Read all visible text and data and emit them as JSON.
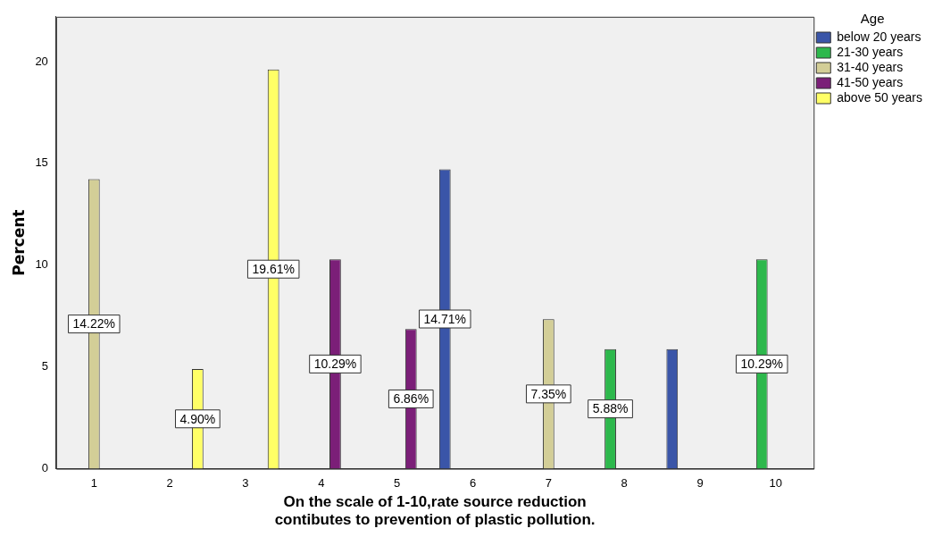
{
  "chart_data": {
    "type": "bar",
    "xlabel": "On the scale of 1-10,rate source reduction\ncontibutes to prevention of plastic pollution.",
    "ylabel": "Percent",
    "legend_title": "Age",
    "legend": "top right",
    "grid": false,
    "categories": [
      "1",
      "2",
      "3",
      "4",
      "5",
      "6",
      "7",
      "8",
      "9",
      "10"
    ],
    "ylim": [
      0,
      22.2
    ],
    "yticks": [
      0,
      5,
      10,
      15,
      20
    ],
    "series": [
      {
        "name": "below 20 years",
        "color": "#3a55a8",
        "values": [
          null,
          null,
          null,
          null,
          null,
          14.71,
          null,
          null,
          5.88,
          null
        ],
        "value_labels": [
          null,
          null,
          null,
          null,
          null,
          "14.71%",
          null,
          null,
          null,
          null
        ]
      },
      {
        "name": "21-30 years",
        "color": "#2db84c",
        "values": [
          null,
          null,
          null,
          null,
          null,
          null,
          null,
          5.88,
          null,
          10.29
        ],
        "value_labels": [
          null,
          null,
          null,
          null,
          null,
          null,
          null,
          "5.88%",
          null,
          "10.29%"
        ]
      },
      {
        "name": "31-40 years",
        "color": "#d3ce97",
        "values": [
          14.22,
          null,
          null,
          null,
          null,
          null,
          7.35,
          null,
          null,
          null
        ],
        "value_labels": [
          "14.22%",
          null,
          null,
          null,
          null,
          null,
          "7.35%",
          null,
          null,
          null
        ]
      },
      {
        "name": "41-50 years",
        "color": "#7b1f78",
        "values": [
          null,
          null,
          null,
          10.29,
          6.86,
          null,
          null,
          null,
          null,
          null
        ],
        "value_labels": [
          null,
          null,
          null,
          "10.29%",
          "6.86%",
          null,
          null,
          null,
          null,
          null
        ]
      },
      {
        "name": "above 50 years",
        "color": "#ffff66",
        "values": [
          null,
          4.9,
          19.61,
          null,
          null,
          null,
          null,
          null,
          null,
          null
        ],
        "value_labels": [
          null,
          "4.90%",
          "19.61%",
          null,
          null,
          null,
          null,
          null,
          null,
          null
        ]
      }
    ]
  }
}
